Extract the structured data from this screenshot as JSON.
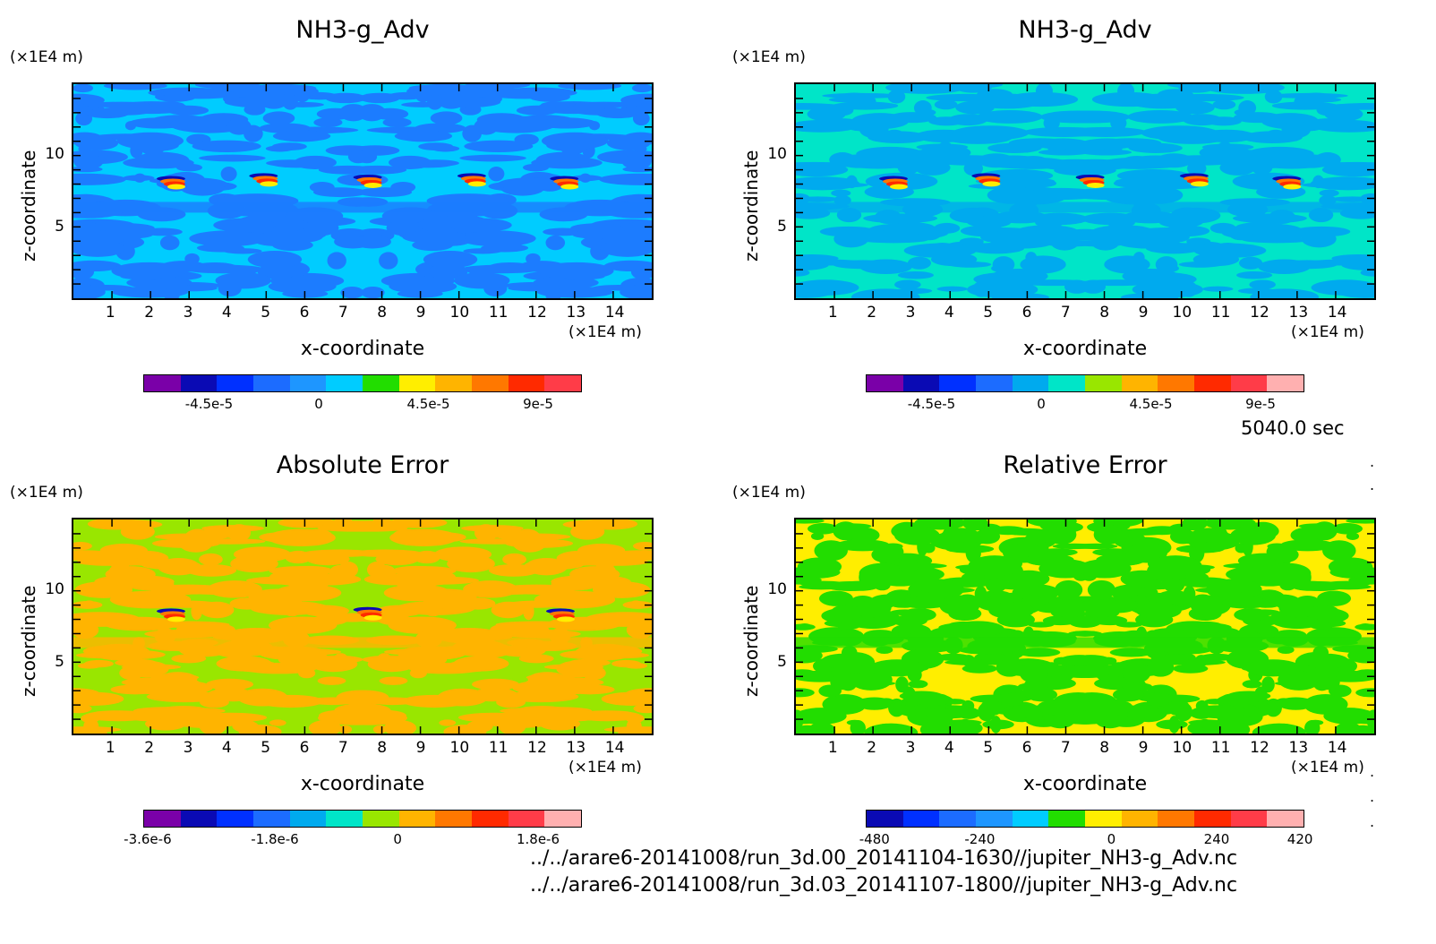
{
  "time_label": "5040.0 sec",
  "files": [
    "../../arare6-20141008/run_3d.00_20141104-1630//jupiter_NH3-g_Adv.nc",
    "../../arare6-20141008/run_3d.03_20141107-1800//jupiter_NH3-g_Adv.nc"
  ],
  "colors": {
    "bg1_primary": "#00ccff",
    "bg1_secondary": "#1c7cff",
    "bg2_primary": "#00e5c8",
    "bg2_secondary": "#00aaee",
    "bg3_primary": "#99e600",
    "bg3_secondary": "#ffb400",
    "bg4_primary": "#ffee00",
    "bg4_secondary": "#22dd00"
  },
  "chart_data": [
    {
      "type": "heatmap",
      "title": "NH3-g_Adv",
      "xlabel": "x-coordinate",
      "ylabel": "z-coordinate",
      "x_unit": "(×1E4 m)",
      "y_unit": "(×1E4 m)",
      "xlim": [
        0,
        15
      ],
      "ylim": [
        0,
        15
      ],
      "x_ticks": [
        "1",
        "2",
        "3",
        "4",
        "5",
        "6",
        "7",
        "8",
        "9",
        "10",
        "11",
        "12",
        "13",
        "14"
      ],
      "y_ticks": [
        "5",
        "10"
      ],
      "colorbar": {
        "colors": [
          "#7a00a8",
          "#0a0ab4",
          "#0030ff",
          "#1c6cff",
          "#1e96ff",
          "#00ccff",
          "#22dd00",
          "#ffee00",
          "#ffb400",
          "#ff7800",
          "#ff2a00",
          "#ff3c48"
        ],
        "labels": [
          "-4.5e-5",
          "0",
          "4.5e-5",
          "9e-5"
        ]
      },
      "features": [
        {
          "x": 2.6,
          "z": 8.0
        },
        {
          "x": 5.0,
          "z": 8.2
        },
        {
          "x": 7.7,
          "z": 8.1
        },
        {
          "x": 10.4,
          "z": 8.2
        },
        {
          "x": 12.8,
          "z": 8.0
        }
      ]
    },
    {
      "type": "heatmap",
      "title": "NH3-g_Adv",
      "xlabel": "x-coordinate",
      "ylabel": "z-coordinate",
      "x_unit": "(×1E4 m)",
      "y_unit": "(×1E4 m)",
      "xlim": [
        0,
        15
      ],
      "ylim": [
        0,
        15
      ],
      "x_ticks": [
        "1",
        "2",
        "3",
        "4",
        "5",
        "6",
        "7",
        "8",
        "9",
        "10",
        "11",
        "12",
        "13",
        "14"
      ],
      "y_ticks": [
        "5",
        "10"
      ],
      "colorbar": {
        "colors": [
          "#7a00a8",
          "#0a0ab4",
          "#0030ff",
          "#1c6cff",
          "#00aaee",
          "#00e5c8",
          "#99e600",
          "#ffb400",
          "#ff7800",
          "#ff2a00",
          "#ff3c48",
          "#ffb0b0"
        ],
        "labels": [
          "-4.5e-5",
          "0",
          "4.5e-5",
          "9e-5"
        ]
      },
      "features": [
        {
          "x": 2.6,
          "z": 8.0
        },
        {
          "x": 5.0,
          "z": 8.2
        },
        {
          "x": 7.7,
          "z": 8.1
        },
        {
          "x": 10.4,
          "z": 8.2
        },
        {
          "x": 12.8,
          "z": 8.0
        }
      ]
    },
    {
      "type": "heatmap",
      "title": "Absolute Error",
      "xlabel": "x-coordinate",
      "ylabel": "z-coordinate",
      "x_unit": "(×1E4 m)",
      "y_unit": "(×1E4 m)",
      "xlim": [
        0,
        15
      ],
      "ylim": [
        0,
        15
      ],
      "x_ticks": [
        "1",
        "2",
        "3",
        "4",
        "5",
        "6",
        "7",
        "8",
        "9",
        "10",
        "11",
        "12",
        "13",
        "14"
      ],
      "y_ticks": [
        "5",
        "10"
      ],
      "colorbar": {
        "colors": [
          "#7a00a8",
          "#0a0ab4",
          "#0030ff",
          "#1c6cff",
          "#00aaee",
          "#00e5c8",
          "#99e600",
          "#ffb400",
          "#ff7800",
          "#ff2a00",
          "#ff3c48",
          "#ffb0b0"
        ],
        "labels": [
          "-3.6e-6",
          "-1.8e-6",
          "0",
          "1.8e-6"
        ]
      },
      "features": [
        {
          "x": 2.6,
          "z": 8.2
        },
        {
          "x": 7.7,
          "z": 8.3
        },
        {
          "x": 12.7,
          "z": 8.2
        }
      ]
    },
    {
      "type": "heatmap",
      "title": "Relative Error",
      "xlabel": "x-coordinate",
      "ylabel": "z-coordinate",
      "x_unit": "(×1E4 m)",
      "y_unit": "(×1E4 m)",
      "xlim": [
        0,
        15
      ],
      "ylim": [
        0,
        15
      ],
      "x_ticks": [
        "1",
        "2",
        "3",
        "4",
        "5",
        "6",
        "7",
        "8",
        "9",
        "10",
        "11",
        "12",
        "13",
        "14"
      ],
      "y_ticks": [
        "5",
        "10"
      ],
      "colorbar": {
        "colors": [
          "#0a0ab4",
          "#0030ff",
          "#1c6cff",
          "#1e96ff",
          "#00ccff",
          "#22dd00",
          "#ffee00",
          "#ffb400",
          "#ff7800",
          "#ff2a00",
          "#ff3c48",
          "#ffb0b0"
        ],
        "labels": [
          "-480",
          "-240",
          "0",
          "240",
          "420"
        ]
      },
      "features": []
    }
  ]
}
